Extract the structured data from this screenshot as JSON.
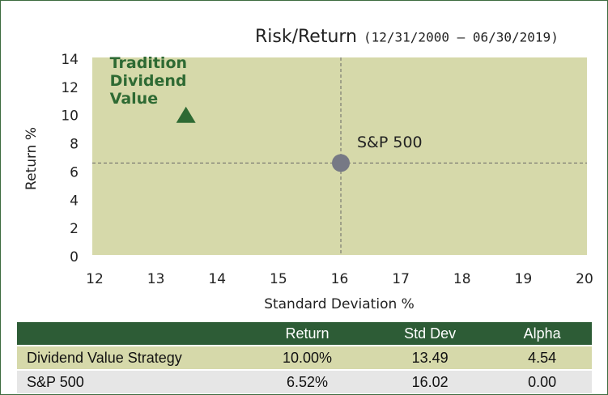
{
  "chart_data": {
    "type": "scatter",
    "title": "Risk/Return",
    "subtitle": "(12/31/2000 – 06/30/2019)",
    "xlabel": "Standard Deviation %",
    "ylabel": "Return %",
    "series": [
      {
        "name": "Tradition Dividend Value",
        "marker": "triangle",
        "color": "#2e6a33",
        "x": [
          13.49
        ],
        "values": [
          10.0
        ]
      },
      {
        "name": "S&P 500",
        "marker": "circle",
        "color": "#767985",
        "x": [
          16.02
        ],
        "values": [
          6.52
        ]
      }
    ],
    "xlim": [
      12,
      20
    ],
    "xticks": [
      12,
      13,
      14,
      15,
      16,
      17,
      18,
      19,
      20
    ],
    "ylim": [
      0,
      14
    ],
    "yticks": [
      0,
      2,
      4,
      6,
      8,
      10,
      12,
      14
    ],
    "plot_background": "#d6d9aa"
  },
  "table": {
    "columns": [
      "Return",
      "Std Dev",
      "Alpha"
    ],
    "rows": [
      [
        "Dividend Value Strategy",
        "10.00%",
        "13.49",
        "4.54"
      ],
      [
        "S&P 500",
        "6.52%",
        "16.02",
        "0.00"
      ]
    ]
  }
}
